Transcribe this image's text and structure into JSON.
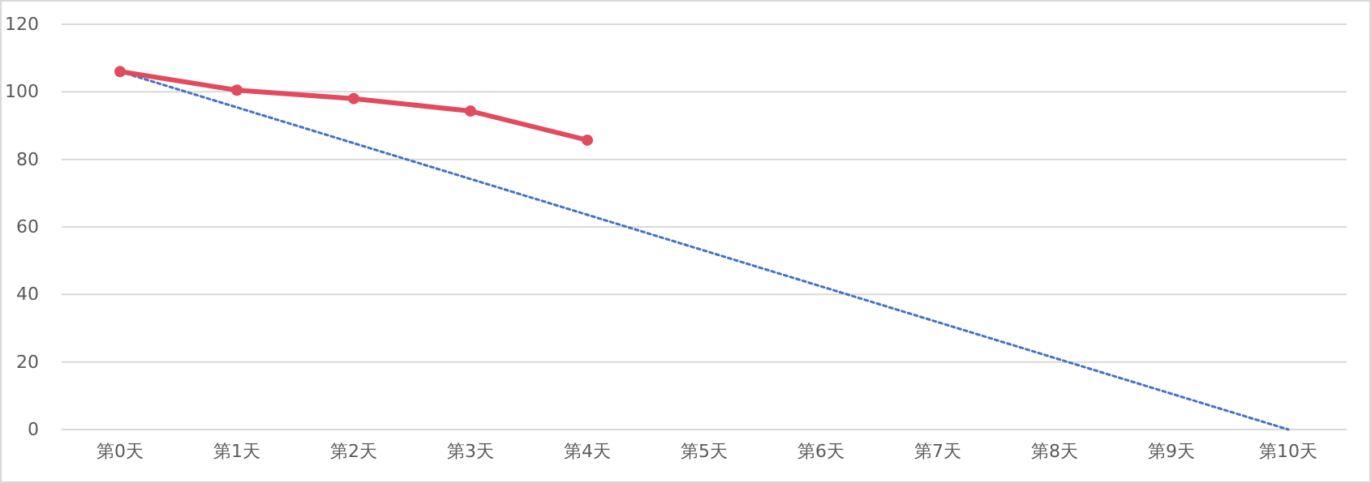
{
  "chart_data": {
    "type": "line",
    "categories": [
      "第0天",
      "第1天",
      "第2天",
      "第3天",
      "第4天",
      "第5天",
      "第6天",
      "第7天",
      "第8天",
      "第9天",
      "第10天"
    ],
    "series": [
      {
        "color": "#e24a5e",
        "values": [
          106,
          100.5,
          98,
          94.3,
          85.7,
          null,
          null,
          null,
          null,
          null,
          null
        ],
        "marker": "circle",
        "line_style": "solid"
      },
      {
        "color": "#4472c4",
        "values": [
          106,
          95.4,
          84.8,
          74.2,
          63.6,
          53,
          42.4,
          31.8,
          21.2,
          10.6,
          0
        ],
        "marker": "none",
        "line_style": "dotted"
      }
    ],
    "ylim": [
      0,
      120
    ],
    "yticks": [
      0,
      20,
      40,
      60,
      80,
      100,
      120
    ],
    "grid": "y"
  }
}
